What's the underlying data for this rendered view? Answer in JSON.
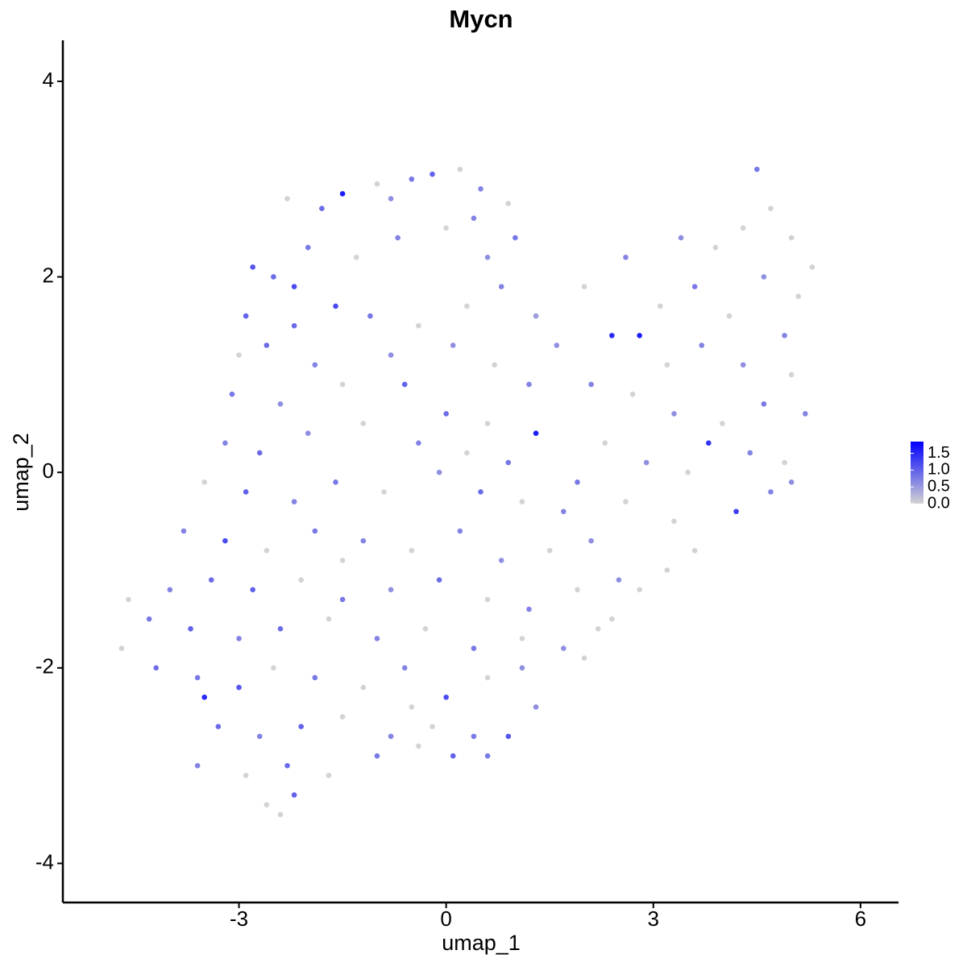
{
  "chart_data": {
    "type": "scatter",
    "title": "Mycn",
    "x_label": "umap_1",
    "y_label": "umap_2",
    "xlim": [
      -5.55,
      6.55
    ],
    "ylim": [
      -4.4,
      4.42
    ],
    "xticks": [
      -3,
      0,
      3,
      6
    ],
    "yticks": [
      -4,
      -2,
      0,
      2,
      4
    ],
    "x": [
      -2.3,
      -1.5,
      -1.0,
      -0.5,
      -0.2,
      0.2,
      0.5,
      0.9,
      -1.8,
      -0.8,
      -2.8,
      -2.5,
      -2.0,
      -1.3,
      -0.7,
      0.0,
      0.6,
      1.0,
      -1.6,
      -2.9,
      -2.2,
      -1.1,
      -0.4,
      0.3,
      0.8,
      1.3,
      -3.0,
      -2.6,
      -1.9,
      -0.8,
      0.1,
      0.7,
      1.2,
      -3.1,
      -2.4,
      -1.5,
      -0.6,
      0.0,
      0.6,
      1.3,
      -3.2,
      -2.7,
      -2.0,
      -1.2,
      -0.4,
      0.3,
      0.9,
      -3.5,
      -2.9,
      -2.2,
      -1.6,
      -0.9,
      -0.1,
      0.5,
      1.1,
      1.7,
      -3.8,
      -3.2,
      -2.6,
      -1.9,
      -1.2,
      -0.5,
      0.2,
      0.8,
      1.5,
      2.1,
      -4.0,
      -3.4,
      -2.8,
      -2.1,
      -1.5,
      -0.8,
      -0.1,
      0.6,
      1.2,
      1.9,
      2.5,
      -4.6,
      -4.3,
      -3.7,
      -3.0,
      -2.4,
      -1.7,
      -1.0,
      -0.3,
      0.4,
      1.1,
      1.7,
      2.2,
      -4.2,
      -3.6,
      -3.0,
      -2.5,
      -1.9,
      -1.2,
      -0.6,
      0.0,
      0.6,
      1.1,
      -3.5,
      -3.3,
      -2.7,
      -2.1,
      -1.5,
      -0.8,
      -0.2,
      0.4,
      0.9,
      -3.6,
      -2.9,
      -2.3,
      -1.7,
      -1.0,
      -0.4,
      0.1,
      0.6,
      -2.6,
      -2.2,
      -2.4,
      -4.7,
      1.6,
      2.0,
      2.4,
      2.8,
      2.6,
      3.1,
      3.4,
      3.9,
      4.3,
      4.5,
      4.7,
      5.0,
      5.3,
      4.6,
      5.1,
      3.6,
      4.1,
      4.9,
      3.2,
      3.7,
      4.3,
      5.0,
      2.1,
      2.7,
      3.3,
      4.0,
      4.6,
      5.2,
      2.3,
      2.9,
      3.5,
      3.8,
      4.4,
      4.9,
      5.0,
      1.9,
      2.6,
      3.3,
      4.2,
      4.7,
      3.6,
      3.2,
      2.8,
      2.4,
      2.0,
      -0.5,
      1.3,
      -1.5,
      -2.2,
      0.4
    ],
    "y": [
      2.8,
      2.85,
      2.95,
      3.0,
      3.05,
      3.1,
      2.9,
      2.75,
      2.7,
      2.8,
      2.1,
      2.0,
      2.3,
      2.2,
      2.4,
      2.5,
      2.2,
      2.4,
      1.7,
      1.6,
      1.5,
      1.6,
      1.5,
      1.7,
      1.9,
      1.6,
      1.2,
      1.3,
      1.1,
      1.2,
      1.3,
      1.1,
      0.9,
      0.8,
      0.7,
      0.9,
      0.9,
      0.6,
      0.5,
      0.4,
      0.3,
      0.2,
      0.4,
      0.5,
      0.3,
      0.2,
      0.1,
      -0.1,
      -0.2,
      -0.3,
      -0.1,
      -0.2,
      0.0,
      -0.2,
      -0.3,
      -0.4,
      -0.6,
      -0.7,
      -0.8,
      -0.6,
      -0.7,
      -0.8,
      -0.6,
      -0.9,
      -0.8,
      -0.7,
      -1.2,
      -1.1,
      -1.2,
      -1.1,
      -1.3,
      -1.2,
      -1.1,
      -1.3,
      -1.4,
      -1.2,
      -1.1,
      -1.3,
      -1.5,
      -1.6,
      -1.7,
      -1.6,
      -1.5,
      -1.7,
      -1.6,
      -1.8,
      -1.7,
      -1.8,
      -1.6,
      -2.0,
      -2.1,
      -2.2,
      -2.0,
      -2.1,
      -2.2,
      -2.0,
      -2.3,
      -2.1,
      -2.0,
      -2.3,
      -2.6,
      -2.7,
      -2.6,
      -2.5,
      -2.7,
      -2.6,
      -2.7,
      -2.7,
      -3.0,
      -3.1,
      -3.0,
      -3.1,
      -2.9,
      -2.8,
      -2.9,
      -2.9,
      -3.4,
      -3.3,
      -3.5,
      -1.8,
      1.3,
      1.9,
      1.4,
      1.4,
      2.2,
      1.7,
      2.4,
      2.3,
      2.5,
      3.1,
      2.7,
      2.4,
      2.1,
      2.0,
      1.8,
      1.9,
      1.6,
      1.4,
      1.1,
      1.3,
      1.1,
      1.0,
      0.9,
      0.8,
      0.6,
      0.5,
      0.7,
      0.6,
      0.3,
      0.1,
      0.0,
      0.3,
      0.2,
      0.1,
      -0.1,
      -0.1,
      -0.3,
      -0.5,
      -0.4,
      -0.2,
      -0.8,
      -1.0,
      -1.2,
      -1.5,
      -1.9,
      -2.4,
      -2.4,
      -0.9,
      1.9,
      2.6
    ],
    "expression": [
      0,
      1.6,
      0,
      0.8,
      1.0,
      0,
      0.7,
      0,
      0.9,
      0.6,
      1.1,
      0.9,
      0.8,
      0,
      0.7,
      0,
      0.6,
      0.8,
      1.2,
      1.0,
      0.9,
      0.8,
      0,
      0,
      0.7,
      0.5,
      0,
      0.9,
      0.7,
      0.6,
      0.6,
      0,
      0.7,
      0.8,
      0.6,
      0,
      1.0,
      0.9,
      0,
      1.6,
      0.7,
      0.9,
      0.6,
      0,
      0.7,
      0,
      0.8,
      0,
      1.0,
      0.7,
      0.8,
      0,
      0.6,
      0.9,
      0,
      0.7,
      0.7,
      1.2,
      0,
      0.8,
      0.7,
      0,
      0.7,
      0.6,
      0,
      0.6,
      0.7,
      0.9,
      1.0,
      0,
      0.8,
      0.6,
      0.9,
      0,
      0.7,
      0,
      0.6,
      0,
      0.8,
      1.0,
      0.7,
      0.9,
      0,
      0.7,
      0,
      0.8,
      0,
      0.6,
      0,
      0.9,
      0.8,
      1.1,
      0,
      0.8,
      0,
      0.7,
      1.2,
      0,
      0.6,
      1.5,
      0.9,
      0.7,
      1.0,
      0,
      0.7,
      0,
      0.8,
      1.1,
      0.7,
      0,
      0.9,
      0,
      0.8,
      0,
      1.0,
      0.8,
      0,
      1.0,
      0,
      0,
      0.6,
      0,
      1.5,
      1.6,
      0.7,
      0,
      0.6,
      0,
      0,
      0.8,
      0,
      0,
      0,
      0.6,
      0,
      0.8,
      0,
      0.7,
      0,
      0.7,
      0.6,
      0,
      0.7,
      0,
      0.6,
      0,
      0.8,
      0.7,
      0,
      0.6,
      0,
      1.4,
      0.7,
      0,
      0.6,
      0.8,
      0,
      0,
      1.3,
      0.7,
      0,
      0,
      0,
      0,
      0,
      0,
      0.6,
      0,
      1.2,
      0.7
    ],
    "colorbar": {
      "lim": [
        0,
        1.85
      ],
      "ticks": [
        {
          "value": 0,
          "label": "0.0"
        },
        0.5,
        {
          "value": 1,
          "label": "1.0"
        },
        1.5
      ],
      "low_color": "#d3d3d3",
      "high_color": "#0000ff"
    }
  }
}
